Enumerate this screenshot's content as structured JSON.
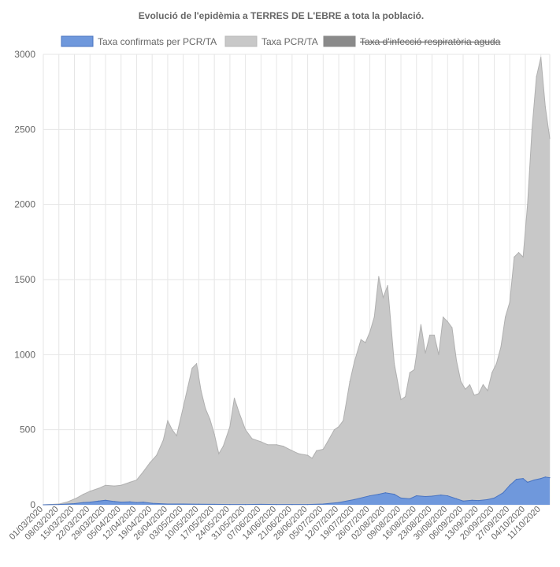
{
  "chart_data": {
    "type": "area",
    "title": "Evolució de l'epidèmia a TERRES DE L'EBRE a tota la població.",
    "ylim": [
      0,
      3000
    ],
    "yticks": [
      0,
      500,
      1000,
      1500,
      2000,
      2500,
      3000
    ],
    "x_start": "01/03/2020",
    "x_end": "15/10/2020",
    "x_tick_labels": [
      "01/03/2020",
      "08/03/2020",
      "15/03/2020",
      "22/03/2020",
      "29/03/2020",
      "05/04/2020",
      "12/04/2020",
      "19/04/2020",
      "26/04/2020",
      "03/05/2020",
      "10/05/2020",
      "17/05/2020",
      "24/05/2020",
      "31/05/2020",
      "07/06/2020",
      "14/06/2020",
      "21/06/2020",
      "28/06/2020",
      "05/07/2020",
      "12/07/2020",
      "19/07/2020",
      "26/07/2020",
      "02/08/2020",
      "09/08/2020",
      "16/08/2020",
      "23/08/2020",
      "30/08/2020",
      "06/09/2020",
      "13/09/2020",
      "20/09/2020",
      "27/09/2020",
      "04/10/2020",
      "11/10/2020"
    ],
    "grid": true,
    "legend_position": "top",
    "series": [
      {
        "name": "Taxa PCR/TA",
        "color": "#c8c8c8",
        "hidden": false,
        "points": [
          [
            "01/03/2020",
            0
          ],
          [
            "08/03/2020",
            5
          ],
          [
            "12/03/2020",
            20
          ],
          [
            "16/03/2020",
            45
          ],
          [
            "19/03/2020",
            70
          ],
          [
            "22/03/2020",
            90
          ],
          [
            "26/03/2020",
            110
          ],
          [
            "29/03/2020",
            130
          ],
          [
            "02/04/2020",
            125
          ],
          [
            "05/04/2020",
            130
          ],
          [
            "09/04/2020",
            150
          ],
          [
            "12/04/2020",
            165
          ],
          [
            "15/04/2020",
            220
          ],
          [
            "18/04/2020",
            280
          ],
          [
            "21/04/2020",
            330
          ],
          [
            "24/04/2020",
            430
          ],
          [
            "26/04/2020",
            560
          ],
          [
            "28/04/2020",
            500
          ],
          [
            "30/04/2020",
            460
          ],
          [
            "03/05/2020",
            650
          ],
          [
            "05/05/2020",
            780
          ],
          [
            "07/05/2020",
            910
          ],
          [
            "09/05/2020",
            940
          ],
          [
            "11/05/2020",
            760
          ],
          [
            "13/05/2020",
            640
          ],
          [
            "15/05/2020",
            570
          ],
          [
            "17/05/2020",
            470
          ],
          [
            "19/05/2020",
            340
          ],
          [
            "21/05/2020",
            390
          ],
          [
            "24/05/2020",
            520
          ],
          [
            "26/05/2020",
            710
          ],
          [
            "28/05/2020",
            620
          ],
          [
            "31/05/2020",
            500
          ],
          [
            "03/06/2020",
            440
          ],
          [
            "07/06/2020",
            420
          ],
          [
            "10/06/2020",
            400
          ],
          [
            "14/06/2020",
            400
          ],
          [
            "17/06/2020",
            390
          ],
          [
            "21/06/2020",
            360
          ],
          [
            "24/06/2020",
            340
          ],
          [
            "28/06/2020",
            330
          ],
          [
            "30/06/2020",
            310
          ],
          [
            "02/07/2020",
            360
          ],
          [
            "05/07/2020",
            370
          ],
          [
            "07/07/2020",
            420
          ],
          [
            "10/07/2020",
            500
          ],
          [
            "12/07/2020",
            520
          ],
          [
            "14/07/2020",
            560
          ],
          [
            "17/07/2020",
            820
          ],
          [
            "19/07/2020",
            950
          ],
          [
            "22/07/2020",
            1100
          ],
          [
            "24/07/2020",
            1080
          ],
          [
            "26/07/2020",
            1150
          ],
          [
            "28/07/2020",
            1250
          ],
          [
            "30/07/2020",
            1520
          ],
          [
            "01/08/2020",
            1380
          ],
          [
            "03/08/2020",
            1460
          ],
          [
            "06/08/2020",
            940
          ],
          [
            "09/08/2020",
            700
          ],
          [
            "11/08/2020",
            720
          ],
          [
            "13/08/2020",
            880
          ],
          [
            "15/08/2020",
            900
          ],
          [
            "18/08/2020",
            1200
          ],
          [
            "20/08/2020",
            1010
          ],
          [
            "22/08/2020",
            1130
          ],
          [
            "24/08/2020",
            1130
          ],
          [
            "26/08/2020",
            1000
          ],
          [
            "28/08/2020",
            1250
          ],
          [
            "30/08/2020",
            1220
          ],
          [
            "01/09/2020",
            1180
          ],
          [
            "03/09/2020",
            960
          ],
          [
            "05/09/2020",
            820
          ],
          [
            "07/09/2020",
            770
          ],
          [
            "09/09/2020",
            800
          ],
          [
            "11/09/2020",
            730
          ],
          [
            "13/09/2020",
            740
          ],
          [
            "15/09/2020",
            800
          ],
          [
            "17/09/2020",
            760
          ],
          [
            "19/09/2020",
            880
          ],
          [
            "21/09/2020",
            940
          ],
          [
            "23/09/2020",
            1050
          ],
          [
            "25/09/2020",
            1250
          ],
          [
            "27/09/2020",
            1350
          ],
          [
            "29/09/2020",
            1650
          ],
          [
            "01/10/2020",
            1680
          ],
          [
            "03/10/2020",
            1650
          ],
          [
            "05/10/2020",
            2000
          ],
          [
            "07/10/2020",
            2500
          ],
          [
            "09/10/2020",
            2850
          ],
          [
            "11/10/2020",
            2980
          ],
          [
            "13/10/2020",
            2650
          ],
          [
            "15/10/2020",
            2440
          ]
        ]
      },
      {
        "name": "Taxa confirmats per PCR/TA",
        "color": "#6f98dc",
        "hidden": false,
        "points": [
          [
            "01/03/2020",
            0
          ],
          [
            "08/03/2020",
            2
          ],
          [
            "15/03/2020",
            8
          ],
          [
            "19/03/2020",
            15
          ],
          [
            "22/03/2020",
            18
          ],
          [
            "26/03/2020",
            25
          ],
          [
            "29/03/2020",
            30
          ],
          [
            "02/04/2020",
            22
          ],
          [
            "05/04/2020",
            18
          ],
          [
            "09/04/2020",
            20
          ],
          [
            "12/04/2020",
            15
          ],
          [
            "15/04/2020",
            18
          ],
          [
            "19/04/2020",
            10
          ],
          [
            "26/04/2020",
            5
          ],
          [
            "03/05/2020",
            5
          ],
          [
            "10/05/2020",
            4
          ],
          [
            "17/05/2020",
            3
          ],
          [
            "24/05/2020",
            2
          ],
          [
            "31/05/2020",
            2
          ],
          [
            "07/06/2020",
            3
          ],
          [
            "14/06/2020",
            2
          ],
          [
            "21/06/2020",
            2
          ],
          [
            "28/06/2020",
            2
          ],
          [
            "05/07/2020",
            5
          ],
          [
            "12/07/2020",
            15
          ],
          [
            "19/07/2020",
            35
          ],
          [
            "26/07/2020",
            60
          ],
          [
            "30/07/2020",
            70
          ],
          [
            "02/08/2020",
            80
          ],
          [
            "06/08/2020",
            70
          ],
          [
            "09/08/2020",
            45
          ],
          [
            "13/08/2020",
            40
          ],
          [
            "16/08/2020",
            60
          ],
          [
            "20/08/2020",
            55
          ],
          [
            "23/08/2020",
            58
          ],
          [
            "27/08/2020",
            65
          ],
          [
            "30/08/2020",
            60
          ],
          [
            "03/09/2020",
            40
          ],
          [
            "06/09/2020",
            25
          ],
          [
            "10/09/2020",
            30
          ],
          [
            "13/09/2020",
            28
          ],
          [
            "17/09/2020",
            35
          ],
          [
            "20/09/2020",
            45
          ],
          [
            "24/09/2020",
            80
          ],
          [
            "27/09/2020",
            130
          ],
          [
            "30/09/2020",
            170
          ],
          [
            "03/10/2020",
            175
          ],
          [
            "05/10/2020",
            150
          ],
          [
            "08/10/2020",
            165
          ],
          [
            "11/10/2020",
            175
          ],
          [
            "13/10/2020",
            185
          ],
          [
            "15/10/2020",
            180
          ]
        ]
      },
      {
        "name": "Taxa d'infecció respiratòria aguda",
        "color": "#999999",
        "hidden": true,
        "points": []
      }
    ]
  }
}
